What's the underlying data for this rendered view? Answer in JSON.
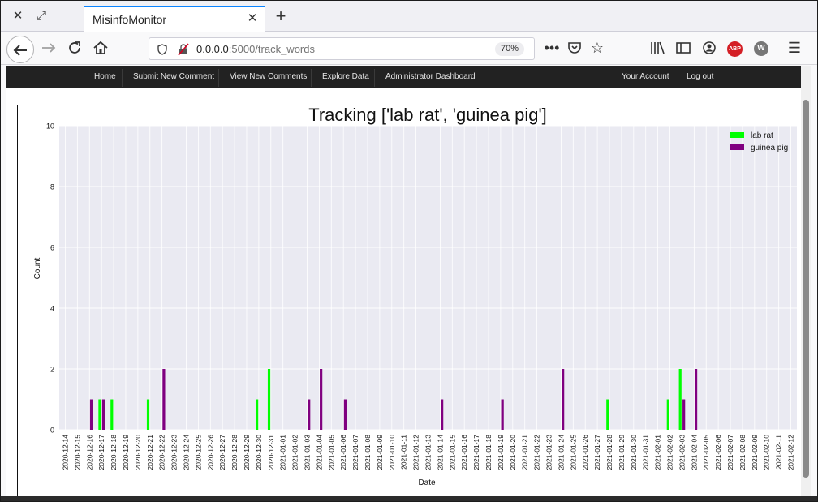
{
  "browser": {
    "tab_title": "MisinfoMonitor",
    "url_host": "0.0.0.0",
    "url_rest": ":5000/track_words",
    "zoom": "70%",
    "abp_label": "ABP",
    "w_label": "W"
  },
  "site_nav": {
    "left": [
      "Home",
      "Submit New Comment",
      "View New Comments",
      "Explore Data",
      "Administrator Dashboard"
    ],
    "right": [
      "Your Account",
      "Log out"
    ]
  },
  "chart_data": {
    "type": "bar",
    "title": "Tracking ['lab rat', 'guinea pig']",
    "xlabel": "Date",
    "ylabel": "Count",
    "ylim": [
      0,
      10
    ],
    "yticks": [
      0,
      2,
      4,
      6,
      8,
      10
    ],
    "grid": true,
    "legend_position": "top-right",
    "categories": [
      "2020-12-14",
      "2020-12-15",
      "2020-12-16",
      "2020-12-17",
      "2020-12-18",
      "2020-12-19",
      "2020-12-20",
      "2020-12-21",
      "2020-12-22",
      "2020-12-23",
      "2020-12-24",
      "2020-12-25",
      "2020-12-26",
      "2020-12-27",
      "2020-12-28",
      "2020-12-29",
      "2020-12-30",
      "2020-12-31",
      "2021-01-01",
      "2021-01-02",
      "2021-01-03",
      "2021-01-04",
      "2021-01-05",
      "2021-01-06",
      "2021-01-07",
      "2021-01-08",
      "2021-01-09",
      "2021-01-10",
      "2021-01-11",
      "2021-01-12",
      "2021-01-13",
      "2021-01-14",
      "2021-01-15",
      "2021-01-16",
      "2021-01-17",
      "2021-01-18",
      "2021-01-19",
      "2021-01-20",
      "2021-01-21",
      "2021-01-22",
      "2021-01-23",
      "2021-01-24",
      "2021-01-25",
      "2021-01-26",
      "2021-01-27",
      "2021-01-28",
      "2021-01-29",
      "2021-01-30",
      "2021-01-31",
      "2021-02-01",
      "2021-02-02",
      "2021-02-03",
      "2021-02-04",
      "2021-02-05",
      "2021-02-06",
      "2021-02-07",
      "2021-02-08",
      "2021-02-09",
      "2021-02-10",
      "2021-02-11",
      "2021-02-12"
    ],
    "series": [
      {
        "name": "lab rat",
        "color": "#00ff00",
        "points": [
          [
            "2020-12-17",
            1
          ],
          [
            "2020-12-18",
            1
          ],
          [
            "2020-12-21",
            1
          ],
          [
            "2020-12-30",
            1
          ],
          [
            "2020-12-31",
            2
          ],
          [
            "2021-01-28",
            1
          ],
          [
            "2021-02-02",
            1
          ],
          [
            "2021-02-03",
            2
          ]
        ]
      },
      {
        "name": "guinea pig",
        "color": "#800080",
        "points": [
          [
            "2020-12-16",
            1
          ],
          [
            "2020-12-17",
            1
          ],
          [
            "2020-12-22",
            2
          ],
          [
            "2021-01-03",
            1
          ],
          [
            "2021-01-04",
            2
          ],
          [
            "2021-01-06",
            1
          ],
          [
            "2021-01-14",
            1
          ],
          [
            "2021-01-19",
            1
          ],
          [
            "2021-01-24",
            2
          ],
          [
            "2021-02-03",
            1
          ],
          [
            "2021-02-04",
            2
          ]
        ]
      }
    ]
  }
}
